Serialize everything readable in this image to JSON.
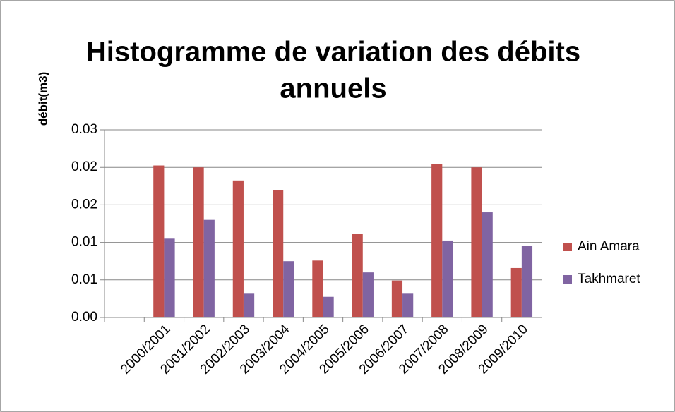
{
  "chart_data": {
    "type": "bar",
    "title": [
      "Histogramme de variation des débits",
      "annuels"
    ],
    "y_label": "débit(m3)",
    "categories": [
      null,
      "2000/2001",
      "2001/2002",
      "2002/2003",
      "2003/2004",
      "2004/2005",
      "2005/2006",
      "2006/2007",
      "2007/2008",
      "2008/2009",
      "2009/2010"
    ],
    "series": [
      {
        "name": "Ain Amara",
        "color": "#c0504d",
        "values": [
          null,
          0.0243,
          0.024,
          0.0219,
          0.0203,
          0.0091,
          0.0134,
          0.0059,
          0.0245,
          0.024,
          0.0079
        ]
      },
      {
        "name": "Takhmaret",
        "color": "#8064a2",
        "values": [
          null,
          0.0126,
          0.0156,
          0.0038,
          0.009,
          0.0033,
          0.0072,
          0.0038,
          0.0123,
          0.0168,
          0.0114
        ]
      }
    ],
    "ylim": [
      0,
      0.03
    ],
    "yticks": [
      {
        "value": 0,
        "label": "0.00"
      },
      {
        "value": 0.006,
        "label": "0.01"
      },
      {
        "value": 0.012,
        "label": "0.01"
      },
      {
        "value": 0.018,
        "label": "0.02"
      },
      {
        "value": 0.024,
        "label": "0.02"
      },
      {
        "value": 0.03,
        "label": "0.03"
      }
    ],
    "grid": true,
    "legend": "right"
  }
}
